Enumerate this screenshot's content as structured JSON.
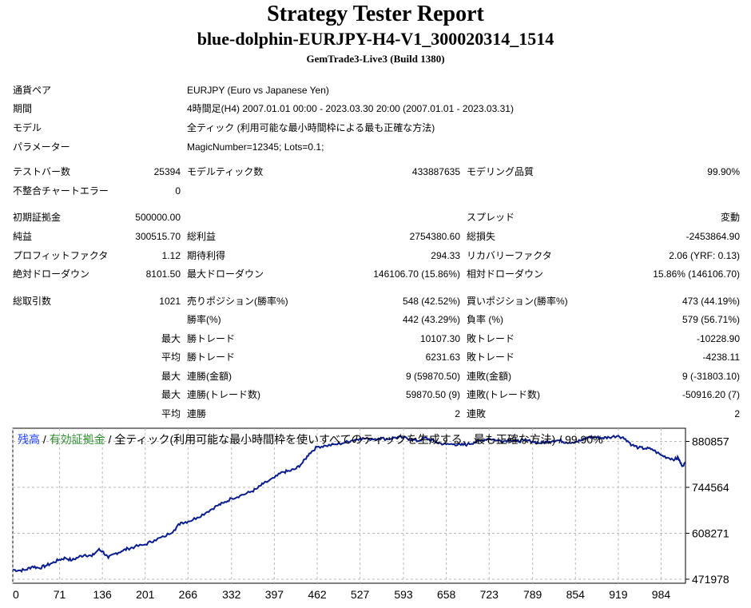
{
  "header": {
    "title": "Strategy Tester Report",
    "subtitle": "blue-dolphin-EURJPY-H4-V1_300020314_1514",
    "server": "GemTrade3-Live3 (Build 1380)"
  },
  "info": {
    "pair_label": "通貨ペア",
    "pair_value": "EURJPY (Euro vs Japanese Yen)",
    "period_label": "期間",
    "period_value": "4時間足(H4) 2007.01.01 00:00 - 2023.03.30 20:00 (2007.01.01 - 2023.03.31)",
    "model_label": "モデル",
    "model_value": "全ティック (利用可能な最小時間枠による最も正確な方法)",
    "params_label": "パラメーター",
    "params_value": "MagicNumber=12345; Lots=0.1;"
  },
  "stats": {
    "bars_label": "テストバー数",
    "bars_value": "25394",
    "ticks_label": "モデルティック数",
    "ticks_value": "433887635",
    "quality_label": "モデリング品質",
    "quality_value": "99.90%",
    "mismatch_label": "不整合チャートエラー",
    "mismatch_value": "0",
    "deposit_label": "初期証拠金",
    "deposit_value": "500000.00",
    "spread_label": "スプレッド",
    "spread_value": "変動",
    "net_label": "純益",
    "net_value": "300515.70",
    "gross_profit_label": "総利益",
    "gross_profit_value": "2754380.60",
    "gross_loss_label": "総損失",
    "gross_loss_value": "-2453864.90",
    "pf_label": "プロフィットファクタ",
    "pf_value": "1.12",
    "expected_label": "期待利得",
    "expected_value": "294.33",
    "recovery_label": "リカバリーファクタ",
    "recovery_value": "2.06 (YRF: 0.13)",
    "abs_dd_label": "絶対ドローダウン",
    "abs_dd_value": "8101.50",
    "max_dd_label": "最大ドローダウン",
    "max_dd_value": "146106.70 (15.86%)",
    "rel_dd_label": "相対ドローダウン",
    "rel_dd_value": "15.86% (146106.70)",
    "total_trades_label": "総取引数",
    "total_trades_value": "1021",
    "short_label": "売りポジション(勝率%)",
    "short_value": "548 (42.52%)",
    "long_label": "買いポジション(勝率%)",
    "long_value": "473 (44.19%)",
    "win_rate_label": "勝率(%)",
    "win_rate_value": "442 (43.29%)",
    "loss_rate_label": "負率 (%)",
    "loss_rate_value": "579 (56.71%)",
    "max_label": "最大",
    "avg_label": "平均",
    "largest_win_label": "勝トレード",
    "largest_win_value": "10107.30",
    "largest_loss_label": "敗トレード",
    "largest_loss_value": "-10228.90",
    "avg_win_label": "勝トレード",
    "avg_win_value": "6231.63",
    "avg_loss_label": "敗トレード",
    "avg_loss_value": "-4238.11",
    "max_max_label": "最大",
    "consec_win_amt_label": "連勝(金額)",
    "consec_win_amt_value": "9 (59870.50)",
    "consec_loss_amt_label": "連敗(金額)",
    "consec_loss_amt_value": "9 (-31803.10)",
    "max_max2_label": "最大",
    "consec_win_cnt_label": "連勝(トレード数)",
    "consec_win_cnt_value": "59870.50 (9)",
    "consec_loss_cnt_label": "連敗(トレード数)",
    "consec_loss_cnt_value": "-50916.20 (7)",
    "avg2_label": "平均",
    "avg_consec_win_label": "連勝",
    "avg_consec_win_value": "2",
    "avg_consec_loss_label": "連敗",
    "avg_consec_loss_value": "2"
  },
  "chart_data": {
    "type": "line",
    "legend": {
      "balance": "残高",
      "sep1": " / ",
      "equity": "有効証拠金",
      "rest": " / 全ティック(利用可能な最小時間枠を使いすべてのティックを生成する、最も正確な方法) / 99.90%"
    },
    "colors": {
      "balance": "#1e40ff",
      "equity": "#2e8b2e",
      "line": "#0a1d8c",
      "grid": "#b8b8b8"
    },
    "x_ticks": [
      0,
      71,
      136,
      201,
      266,
      332,
      397,
      462,
      527,
      593,
      658,
      723,
      789,
      854,
      919,
      984
    ],
    "y_ticks": [
      471978,
      608271,
      744564,
      880857
    ],
    "xlim": [
      0,
      1021
    ],
    "ylim": [
      460000,
      920000
    ],
    "grid": true,
    "series": [
      {
        "x": [
          0,
          10,
          20,
          30,
          40,
          50,
          60,
          71,
          80,
          90,
          100,
          110,
          120,
          130,
          136,
          145,
          155,
          165,
          175,
          185,
          201,
          215,
          230,
          245,
          255,
          266,
          280,
          295,
          310,
          320,
          332,
          345,
          360,
          370,
          380,
          397,
          410,
          420,
          430,
          440,
          450,
          462,
          475,
          490,
          505,
          515,
          527,
          540,
          555,
          570,
          580,
          593,
          605,
          615,
          625,
          635,
          645,
          658,
          670,
          680,
          690,
          700,
          710,
          723,
          735,
          745,
          755,
          765,
          775,
          789,
          800,
          810,
          820,
          830,
          840,
          854,
          865,
          875,
          885,
          895,
          905,
          919,
          930,
          940,
          950,
          960,
          970,
          984,
          995,
          1005,
          1010,
          1015,
          1021
        ],
        "y": [
          500000,
          498000,
          500000,
          510000,
          505000,
          512000,
          520000,
          530000,
          535000,
          528000,
          538000,
          545000,
          540000,
          560000,
          555000,
          535000,
          548000,
          555000,
          563000,
          568000,
          575000,
          588000,
          598000,
          618000,
          640000,
          643000,
          655000,
          672000,
          690000,
          698000,
          712000,
          720000,
          730000,
          740000,
          755000,
          773000,
          790000,
          793000,
          800000,
          818000,
          845000,
          865000,
          868000,
          872000,
          878000,
          884000,
          890000,
          888000,
          890000,
          888000,
          893000,
          892000,
          887000,
          882000,
          891000,
          885000,
          877000,
          872000,
          873000,
          870000,
          872000,
          878000,
          883000,
          890000,
          884000,
          882000,
          886000,
          881000,
          884000,
          881000,
          876000,
          880000,
          883000,
          884000,
          878000,
          880000,
          885000,
          894000,
          893000,
          891000,
          893000,
          898000,
          888000,
          870000,
          862000,
          860000,
          858000,
          840000,
          832000,
          828000,
          832000,
          810000,
          815000
        ]
      }
    ]
  }
}
